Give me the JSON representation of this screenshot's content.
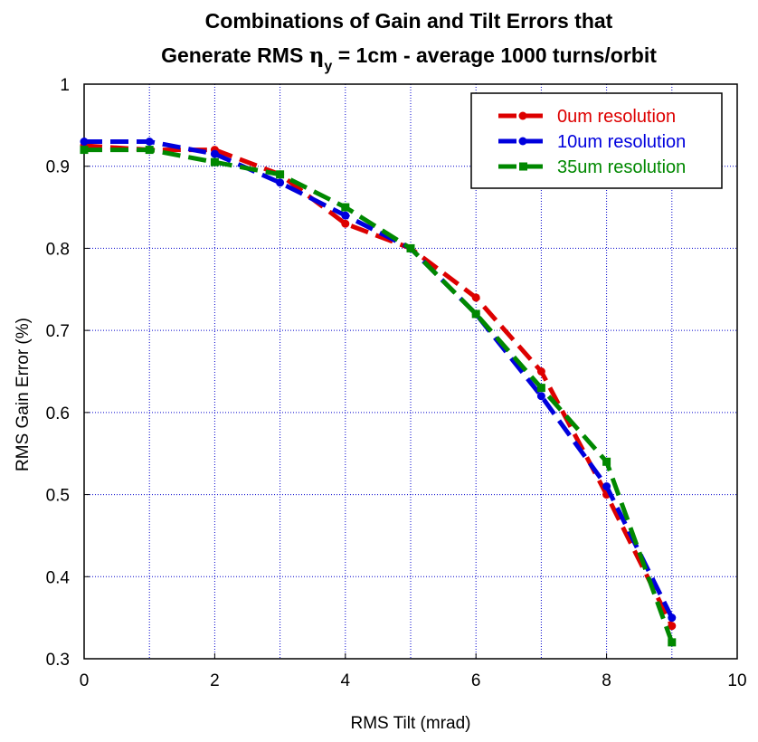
{
  "chart_data": {
    "type": "line",
    "title_line1": "Combinations of Gain and Tilt Errors that",
    "title_line2_prefix": "Generate RMS ",
    "title_symbol": "η",
    "title_subscript": "y",
    "title_line2_suffix": " = 1cm - average 1000 turns/orbit",
    "xlabel": "RMS Tilt (mrad)",
    "ylabel": "RMS Gain Error (%)",
    "xlim": [
      0,
      10
    ],
    "ylim": [
      0.3,
      1.0
    ],
    "x_ticks": [
      "0",
      "2",
      "4",
      "6",
      "8",
      "10"
    ],
    "y_ticks": [
      "0.3",
      "0.4",
      "0.5",
      "0.6",
      "0.7",
      "0.8",
      "0.9",
      "1"
    ],
    "grid": true,
    "grid_color": "#0000cc",
    "legend_position": "top-right",
    "series": [
      {
        "name": "0um resolution",
        "color": "#dd0000",
        "marker": "circle",
        "x": [
          0,
          1,
          2,
          3,
          4,
          5,
          6,
          7,
          8,
          9
        ],
        "y": [
          0.925,
          0.92,
          0.92,
          0.89,
          0.83,
          0.8,
          0.74,
          0.65,
          0.5,
          0.34
        ]
      },
      {
        "name": "10um resolution",
        "color": "#0000dd",
        "marker": "circle",
        "x": [
          0,
          1,
          2,
          3,
          4,
          5,
          6,
          7,
          8,
          9
        ],
        "y": [
          0.93,
          0.93,
          0.915,
          0.88,
          0.84,
          0.8,
          0.72,
          0.62,
          0.51,
          0.35
        ]
      },
      {
        "name": "35um resolution",
        "color": "#008800",
        "marker": "square",
        "x": [
          0,
          1,
          2,
          3,
          4,
          5,
          6,
          7,
          8,
          9
        ],
        "y": [
          0.92,
          0.92,
          0.905,
          0.89,
          0.85,
          0.8,
          0.72,
          0.63,
          0.54,
          0.32
        ]
      }
    ]
  }
}
